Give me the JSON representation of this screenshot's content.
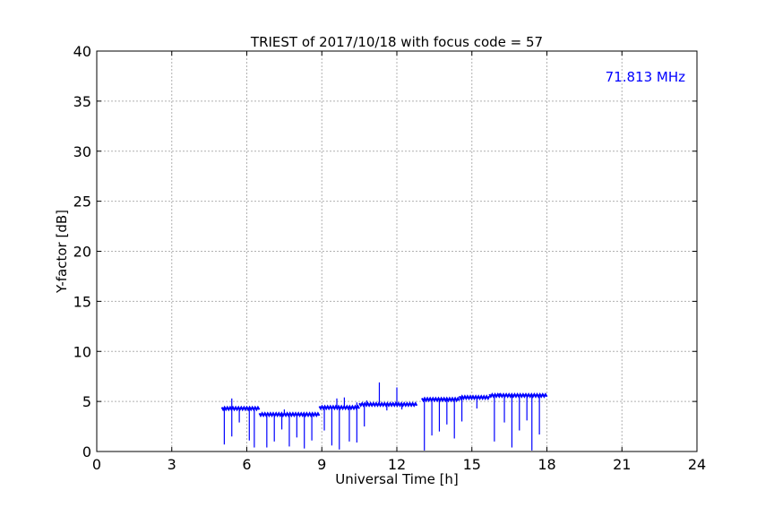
{
  "chart_data": {
    "type": "line",
    "title": "TRIEST of 2017/10/18 with focus code = 57",
    "xlabel": "Universal Time [h]",
    "ylabel": "Y-factor [dB]",
    "xlim": [
      0,
      24
    ],
    "ylim": [
      0,
      40
    ],
    "xticks": [
      0,
      3,
      6,
      9,
      12,
      15,
      18,
      21,
      24
    ],
    "yticks": [
      0,
      5,
      10,
      15,
      20,
      25,
      30,
      35,
      40
    ],
    "grid": true,
    "annotation": {
      "text": "71.813 MHz",
      "position": "top-right",
      "color": "#0000ff"
    },
    "series": [
      {
        "color": "#0000ff",
        "segments": [
          {
            "x_start": 5.0,
            "x_end": 6.5,
            "level": 4.3
          },
          {
            "x_start": 6.5,
            "x_end": 8.9,
            "level": 3.7
          },
          {
            "x_start": 8.9,
            "x_end": 10.5,
            "level": 4.4
          },
          {
            "x_start": 10.5,
            "x_end": 12.8,
            "level": 4.7
          },
          {
            "x_start": 13.0,
            "x_end": 14.5,
            "level": 5.2
          },
          {
            "x_start": 14.5,
            "x_end": 15.7,
            "level": 5.4
          },
          {
            "x_start": 15.7,
            "x_end": 18.0,
            "level": 5.6
          }
        ],
        "dips": [
          {
            "x": 5.1,
            "y": 0.7
          },
          {
            "x": 5.4,
            "y": 1.5
          },
          {
            "x": 5.7,
            "y": 2.9
          },
          {
            "x": 6.1,
            "y": 1.1
          },
          {
            "x": 6.3,
            "y": 0.4
          },
          {
            "x": 6.8,
            "y": 0.4
          },
          {
            "x": 7.1,
            "y": 1.0
          },
          {
            "x": 7.4,
            "y": 2.2
          },
          {
            "x": 7.7,
            "y": 0.5
          },
          {
            "x": 8.0,
            "y": 1.4
          },
          {
            "x": 8.3,
            "y": 0.3
          },
          {
            "x": 8.6,
            "y": 1.1
          },
          {
            "x": 9.1,
            "y": 2.1
          },
          {
            "x": 9.4,
            "y": 0.6
          },
          {
            "x": 9.7,
            "y": 0.2
          },
          {
            "x": 10.1,
            "y": 1.0
          },
          {
            "x": 10.4,
            "y": 0.9
          },
          {
            "x": 10.7,
            "y": 2.5
          },
          {
            "x": 11.6,
            "y": 4.1
          },
          {
            "x": 12.2,
            "y": 4.2
          },
          {
            "x": 13.1,
            "y": 0.1
          },
          {
            "x": 13.4,
            "y": 1.6
          },
          {
            "x": 13.7,
            "y": 2.0
          },
          {
            "x": 14.0,
            "y": 2.7
          },
          {
            "x": 14.3,
            "y": 1.3
          },
          {
            "x": 14.6,
            "y": 3.0
          },
          {
            "x": 15.2,
            "y": 4.3
          },
          {
            "x": 15.9,
            "y": 1.0
          },
          {
            "x": 16.3,
            "y": 2.9
          },
          {
            "x": 16.6,
            "y": 0.4
          },
          {
            "x": 16.9,
            "y": 2.1
          },
          {
            "x": 17.2,
            "y": 3.1
          },
          {
            "x": 17.4,
            "y": 0.1
          },
          {
            "x": 17.7,
            "y": 1.7
          }
        ],
        "spikes": [
          {
            "x": 5.4,
            "y": 5.3
          },
          {
            "x": 7.5,
            "y": 4.2
          },
          {
            "x": 9.6,
            "y": 5.3
          },
          {
            "x": 9.9,
            "y": 5.4
          },
          {
            "x": 10.4,
            "y": 4.9
          },
          {
            "x": 10.8,
            "y": 5.1
          },
          {
            "x": 11.3,
            "y": 6.9
          },
          {
            "x": 12.0,
            "y": 6.4
          },
          {
            "x": 13.5,
            "y": 5.1
          },
          {
            "x": 16.1,
            "y": 5.8
          },
          {
            "x": 17.1,
            "y": 5.7
          }
        ]
      }
    ]
  }
}
